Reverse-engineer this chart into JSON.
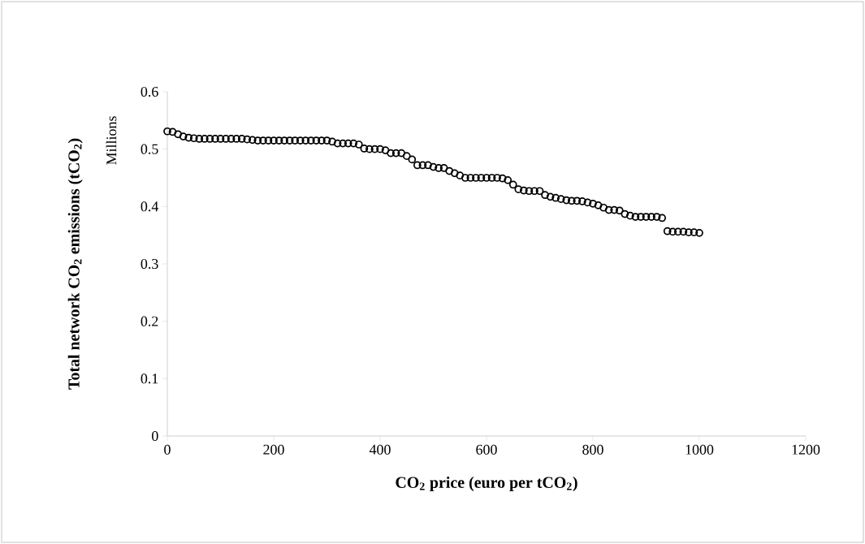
{
  "chart_data": {
    "type": "scatter",
    "xlabel": "CO$_{2}$ price (euro per tCO$_{2}$)",
    "ylabel": "Total network CO$_{2}$ emissions (tCO$_{2}$)",
    "annotations": [
      "Millions"
    ],
    "marker": "circle",
    "color": "#000000",
    "x": [
      0,
      10,
      20,
      30,
      40,
      50,
      60,
      70,
      80,
      90,
      100,
      110,
      120,
      130,
      140,
      150,
      160,
      170,
      180,
      190,
      200,
      210,
      220,
      230,
      240,
      250,
      260,
      270,
      280,
      290,
      300,
      310,
      320,
      330,
      340,
      350,
      360,
      370,
      380,
      390,
      400,
      410,
      420,
      430,
      440,
      450,
      460,
      470,
      480,
      490,
      500,
      510,
      520,
      530,
      540,
      550,
      560,
      570,
      580,
      590,
      600,
      610,
      620,
      630,
      640,
      650,
      660,
      670,
      680,
      690,
      700,
      710,
      720,
      730,
      740,
      750,
      760,
      770,
      780,
      790,
      800,
      810,
      820,
      830,
      840,
      850,
      860,
      870,
      880,
      890,
      900,
      910,
      920,
      930,
      940,
      950,
      960,
      970,
      980,
      990,
      1000
    ],
    "values": [
      0.531,
      0.53,
      0.526,
      0.522,
      0.52,
      0.519,
      0.518,
      0.518,
      0.518,
      0.518,
      0.518,
      0.518,
      0.518,
      0.518,
      0.518,
      0.517,
      0.516,
      0.515,
      0.515,
      0.515,
      0.515,
      0.515,
      0.515,
      0.515,
      0.515,
      0.515,
      0.515,
      0.515,
      0.515,
      0.515,
      0.515,
      0.513,
      0.51,
      0.51,
      0.51,
      0.51,
      0.508,
      0.501,
      0.5,
      0.5,
      0.5,
      0.498,
      0.493,
      0.493,
      0.493,
      0.488,
      0.482,
      0.472,
      0.472,
      0.472,
      0.469,
      0.467,
      0.467,
      0.462,
      0.458,
      0.454,
      0.45,
      0.45,
      0.45,
      0.45,
      0.45,
      0.45,
      0.45,
      0.449,
      0.446,
      0.438,
      0.43,
      0.428,
      0.427,
      0.427,
      0.427,
      0.42,
      0.417,
      0.415,
      0.413,
      0.411,
      0.41,
      0.41,
      0.409,
      0.407,
      0.405,
      0.402,
      0.398,
      0.394,
      0.394,
      0.393,
      0.387,
      0.384,
      0.382,
      0.382,
      0.382,
      0.382,
      0.382,
      0.38,
      0.357,
      0.356,
      0.356,
      0.356,
      0.355,
      0.355,
      0.354
    ],
    "xlim": [
      0,
      1200
    ],
    "ylim": [
      0,
      0.6
    ],
    "xticks": [
      0,
      200,
      400,
      600,
      800,
      1000,
      1200
    ],
    "yticks": [
      0,
      0.1,
      0.2,
      0.3,
      0.4,
      0.5,
      0.6
    ]
  }
}
